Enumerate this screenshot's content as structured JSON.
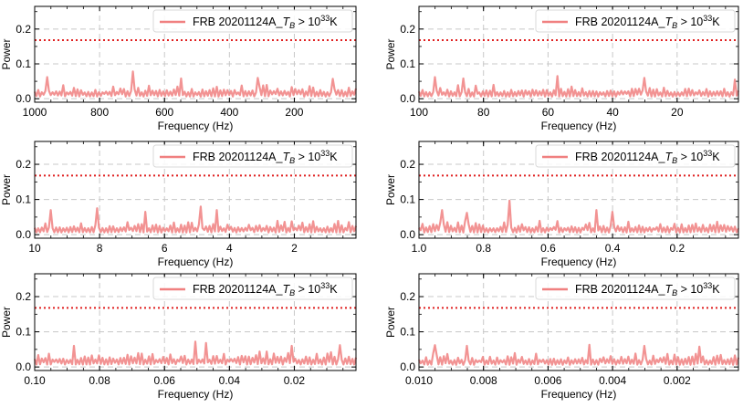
{
  "figure": {
    "colors": {
      "series": "#f08080",
      "threshold": "#e02020",
      "grid": "#c8c8c8",
      "axis": "#000000"
    }
  },
  "chart_data": [
    {
      "type": "line",
      "title": "",
      "xlabel": "Frequency (Hz)",
      "ylabel": "Power",
      "xlim": [
        1000,
        10
      ],
      "ylim": [
        -0.01,
        0.265
      ],
      "xticks": [
        1000,
        800,
        600,
        400,
        200
      ],
      "xtick_labels": [
        "1000",
        "800",
        "600",
        "400",
        "200"
      ],
      "yticks": [
        0.0,
        0.1,
        0.2
      ],
      "ytick_labels": [
        "0.0",
        "0.1",
        "0.2"
      ],
      "grid": true,
      "legend_position": "top-right",
      "legend": {
        "prefix": "FRB 20201124A_",
        "var": "T",
        "sub": "B",
        "rel": " > 10",
        "exp": "33",
        "unit": "K"
      },
      "threshold": 0.168,
      "noise": {
        "n": 180,
        "base": 0.018,
        "amp": 0.022,
        "seed": 11,
        "peaks": [
          [
            700,
            0.078
          ],
          [
            960,
            0.062
          ],
          [
            550,
            0.058
          ],
          [
            310,
            0.06
          ],
          [
            80,
            0.057
          ]
        ]
      }
    },
    {
      "type": "line",
      "title": "",
      "xlabel": "Frequency (Hz)",
      "ylabel": "Power",
      "xlim": [
        100,
        1
      ],
      "ylim": [
        -0.01,
        0.265
      ],
      "xticks": [
        100,
        80,
        60,
        40,
        20
      ],
      "xtick_labels": [
        "100",
        "80",
        "60",
        "40",
        "20"
      ],
      "yticks": [
        0.0,
        0.1,
        0.2
      ],
      "ytick_labels": [
        "0.0",
        "0.1",
        "0.2"
      ],
      "grid": true,
      "legend_position": "top-right",
      "legend": {
        "prefix": "FRB 20201124A_",
        "var": "T",
        "sub": "B",
        "rel": " > 10",
        "exp": "33",
        "unit": "K"
      },
      "threshold": 0.168,
      "noise": {
        "n": 180,
        "base": 0.018,
        "amp": 0.022,
        "seed": 23,
        "peaks": [
          [
            95,
            0.062
          ],
          [
            86,
            0.058
          ],
          [
            57,
            0.065
          ],
          [
            30,
            0.06
          ],
          [
            2,
            0.055
          ]
        ]
      }
    },
    {
      "type": "line",
      "title": "",
      "xlabel": "Frequency (Hz)",
      "ylabel": "Power",
      "xlim": [
        10,
        0.1
      ],
      "ylim": [
        -0.01,
        0.265
      ],
      "xticks": [
        10,
        8,
        6,
        4,
        2
      ],
      "xtick_labels": [
        "10",
        "8",
        "6",
        "4",
        "2"
      ],
      "yticks": [
        0.0,
        0.1,
        0.2
      ],
      "ytick_labels": [
        "0.0",
        "0.1",
        "0.2"
      ],
      "grid": true,
      "legend_position": "top-right",
      "legend": {
        "prefix": "FRB 20201124A_",
        "var": "T",
        "sub": "B",
        "rel": " > 10",
        "exp": "33",
        "unit": "K"
      },
      "threshold": 0.168,
      "noise": {
        "n": 180,
        "base": 0.018,
        "amp": 0.022,
        "seed": 37,
        "peaks": [
          [
            9.5,
            0.07
          ],
          [
            8.1,
            0.075
          ],
          [
            6.6,
            0.065
          ],
          [
            4.9,
            0.08
          ],
          [
            4.4,
            0.07
          ]
        ]
      }
    },
    {
      "type": "line",
      "title": "",
      "xlabel": "Frequency (Hz)",
      "ylabel": "Power",
      "xlim": [
        1.0,
        0.01
      ],
      "ylim": [
        -0.01,
        0.265
      ],
      "xticks": [
        1.0,
        0.8,
        0.6,
        0.4,
        0.2
      ],
      "xtick_labels": [
        "1.0",
        "0.8",
        "0.6",
        "0.4",
        "0.2"
      ],
      "yticks": [
        0.0,
        0.1,
        0.2
      ],
      "ytick_labels": [
        "0.0",
        "0.1",
        "0.2"
      ],
      "grid": true,
      "legend_position": "top-right",
      "legend": {
        "prefix": "FRB 20201124A_",
        "var": "T",
        "sub": "B",
        "rel": " > 10",
        "exp": "33",
        "unit": "K"
      },
      "threshold": 0.168,
      "noise": {
        "n": 180,
        "base": 0.018,
        "amp": 0.022,
        "seed": 41,
        "peaks": [
          [
            0.72,
            0.097
          ],
          [
            0.93,
            0.07
          ],
          [
            0.45,
            0.07
          ],
          [
            0.4,
            0.065
          ],
          [
            0.85,
            0.062
          ]
        ]
      }
    },
    {
      "type": "line",
      "title": "",
      "xlabel": "Frequency (Hz)",
      "ylabel": "Power",
      "xlim": [
        0.1,
        0.001
      ],
      "ylim": [
        -0.01,
        0.265
      ],
      "xticks": [
        0.1,
        0.08,
        0.06,
        0.04,
        0.02
      ],
      "xtick_labels": [
        "0.10",
        "0.08",
        "0.06",
        "0.04",
        "0.02"
      ],
      "yticks": [
        0.0,
        0.1,
        0.2
      ],
      "ytick_labels": [
        "0.0",
        "0.1",
        "0.2"
      ],
      "grid": true,
      "legend_position": "top-right",
      "legend": {
        "prefix": "FRB 20201124A_",
        "var": "T",
        "sub": "B",
        "rel": " > 10",
        "exp": "33",
        "unit": "K"
      },
      "threshold": 0.168,
      "noise": {
        "n": 180,
        "base": 0.02,
        "amp": 0.024,
        "seed": 53,
        "peaks": [
          [
            0.0505,
            0.072
          ],
          [
            0.047,
            0.068
          ],
          [
            0.088,
            0.06
          ],
          [
            0.006,
            0.062
          ],
          [
            0.021,
            0.06
          ]
        ]
      }
    },
    {
      "type": "line",
      "title": "",
      "xlabel": "Frequency (Hz)",
      "ylabel": "Power",
      "xlim": [
        0.01,
        0.0001
      ],
      "ylim": [
        -0.01,
        0.265
      ],
      "xticks": [
        0.01,
        0.008,
        0.006,
        0.004,
        0.002
      ],
      "xtick_labels": [
        "0.010",
        "0.008",
        "0.006",
        "0.004",
        "0.002"
      ],
      "yticks": [
        0.0,
        0.1,
        0.2
      ],
      "ytick_labels": [
        "0.0",
        "0.1",
        "0.2"
      ],
      "grid": true,
      "legend_position": "top-right",
      "legend": {
        "prefix": "FRB 20201124A_",
        "var": "T",
        "sub": "B",
        "rel": " > 10",
        "exp": "33",
        "unit": "K"
      },
      "threshold": 0.168,
      "noise": {
        "n": 180,
        "base": 0.018,
        "amp": 0.022,
        "seed": 67,
        "peaks": [
          [
            0.0095,
            0.062
          ],
          [
            0.0085,
            0.06
          ],
          [
            0.0047,
            0.063
          ],
          [
            0.003,
            0.06
          ],
          [
            0.0013,
            0.058
          ]
        ]
      }
    }
  ]
}
